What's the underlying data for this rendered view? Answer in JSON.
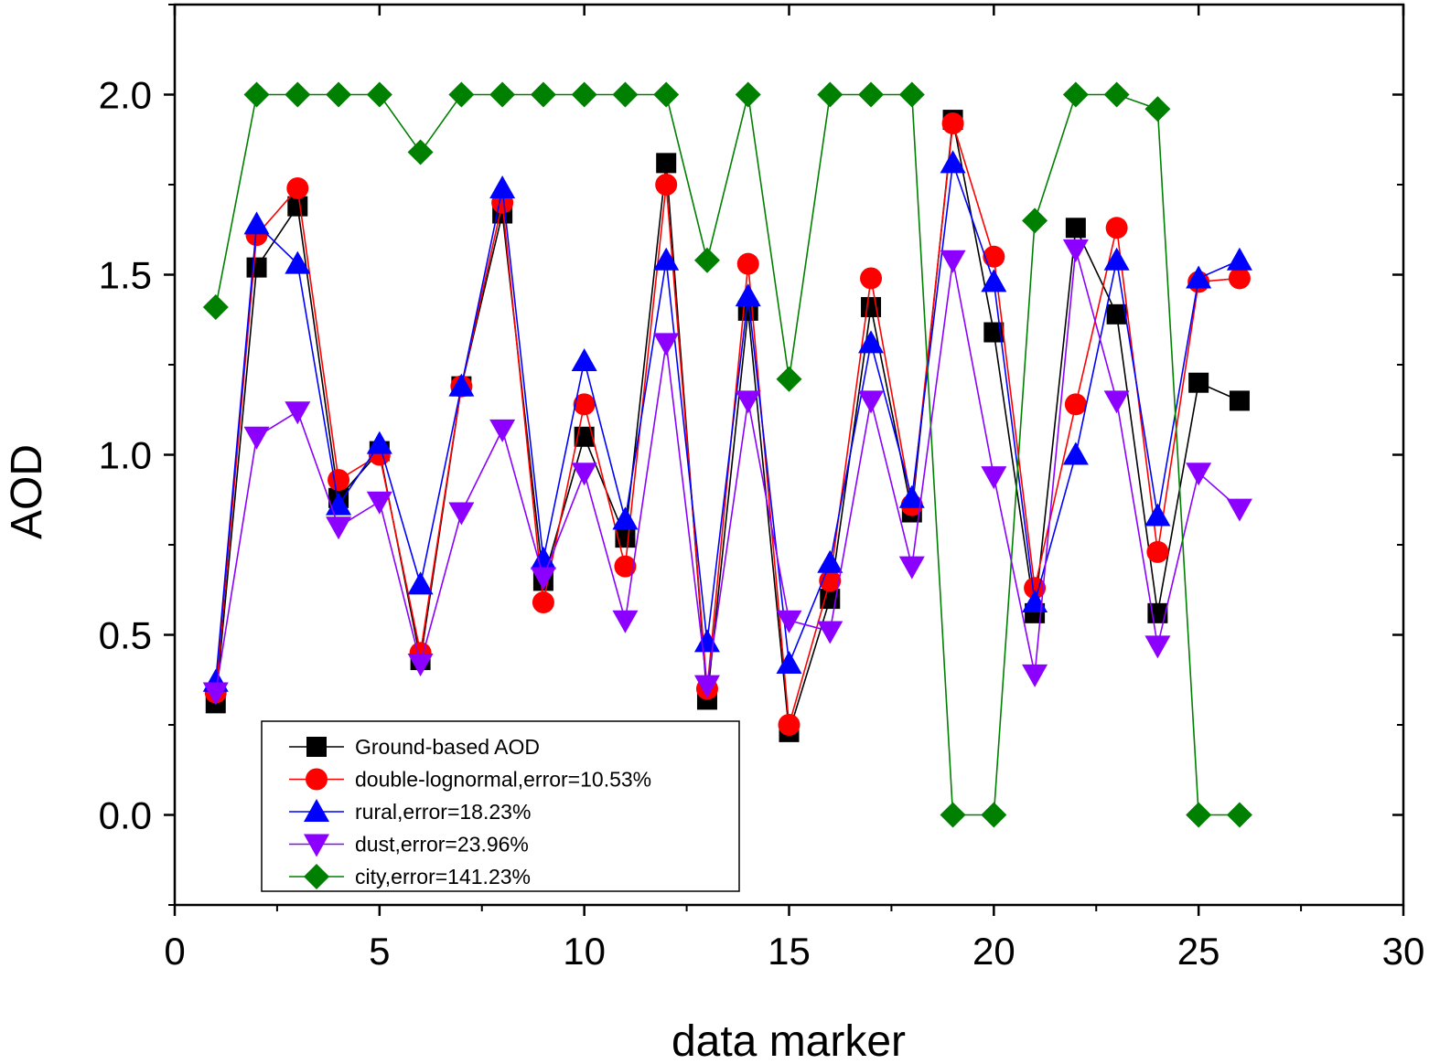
{
  "chart_data": {
    "type": "line",
    "title": "",
    "xlabel": "data marker",
    "ylabel": "AOD",
    "xlim": [
      0,
      30
    ],
    "ylim": [
      -0.25,
      2.25
    ],
    "x_ticks": [
      0,
      5,
      10,
      15,
      20,
      25,
      30
    ],
    "x_tick_labels": [
      "0",
      "5",
      "10",
      "15",
      "20",
      "25",
      "30"
    ],
    "y_ticks": [
      0.0,
      0.5,
      1.0,
      1.5,
      2.0
    ],
    "y_tick_labels": [
      "0.0",
      "0.5",
      "1.0",
      "1.5",
      "2.0"
    ],
    "grid": false,
    "legend_position": "bottom-left",
    "x": [
      1,
      2,
      3,
      4,
      5,
      6,
      7,
      8,
      9,
      10,
      11,
      12,
      13,
      14,
      15,
      16,
      17,
      18,
      19,
      20,
      21,
      22,
      23,
      24,
      25,
      26
    ],
    "series": [
      {
        "name": "Ground-based AOD",
        "color": "#000000",
        "marker": "square",
        "values": [
          0.31,
          1.52,
          1.69,
          0.88,
          1.01,
          0.43,
          1.19,
          1.67,
          0.65,
          1.05,
          0.77,
          1.81,
          0.32,
          1.4,
          0.23,
          0.6,
          1.41,
          0.84,
          1.93,
          1.34,
          0.56,
          1.63,
          1.39,
          0.56,
          1.2,
          1.15
        ]
      },
      {
        "name": "double-lognormal,error=10.53%",
        "color": "#ff0000",
        "marker": "circle",
        "values": [
          0.34,
          1.61,
          1.74,
          0.93,
          1.0,
          0.45,
          1.19,
          1.7,
          0.59,
          1.14,
          0.69,
          1.75,
          0.35,
          1.53,
          0.25,
          0.65,
          1.49,
          0.86,
          1.92,
          1.55,
          0.63,
          1.14,
          1.63,
          0.73,
          1.48,
          1.49
        ]
      },
      {
        "name": "rural,error=18.23%",
        "color": "#0000ff",
        "marker": "triangle-up",
        "values": [
          0.37,
          1.64,
          1.53,
          0.86,
          1.03,
          0.64,
          1.19,
          1.74,
          0.71,
          1.26,
          0.82,
          1.54,
          0.48,
          1.44,
          0.42,
          0.7,
          1.31,
          0.88,
          1.81,
          1.48,
          0.59,
          1.0,
          1.54,
          0.83,
          1.49,
          1.54
        ]
      },
      {
        "name": "dust,error=23.96%",
        "color": "#8b00ff",
        "marker": "triangle-down",
        "values": [
          0.34,
          1.05,
          1.12,
          0.8,
          0.87,
          0.42,
          0.84,
          1.07,
          0.66,
          0.95,
          0.54,
          1.31,
          0.36,
          1.15,
          0.54,
          0.51,
          1.15,
          0.69,
          1.54,
          0.94,
          0.39,
          1.57,
          1.15,
          0.47,
          0.95,
          0.85
        ]
      },
      {
        "name": "city,error=141.23%",
        "color": "#008000",
        "marker": "diamond",
        "values": [
          1.41,
          2.0,
          2.0,
          2.0,
          2.0,
          1.84,
          2.0,
          2.0,
          2.0,
          2.0,
          2.0,
          2.0,
          1.54,
          2.0,
          1.21,
          2.0,
          2.0,
          2.0,
          0.0,
          0.0,
          1.65,
          2.0,
          2.0,
          1.96,
          0.0,
          0.0
        ]
      }
    ]
  }
}
